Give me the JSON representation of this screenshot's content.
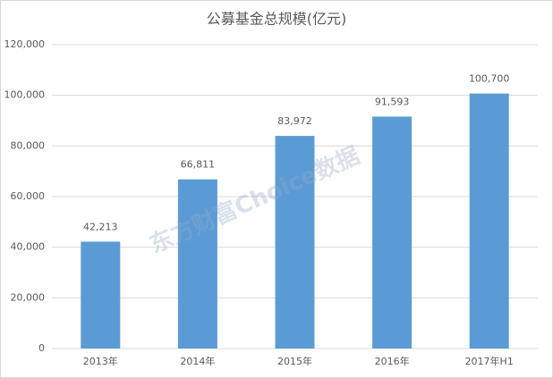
{
  "chart_data": {
    "type": "bar",
    "title": "公募基金总规模(亿元)",
    "categories": [
      "2013年",
      "2014年",
      "2015年",
      "2016年",
      "2017年H1"
    ],
    "values": [
      42213,
      66811,
      83972,
      91593,
      100700
    ],
    "value_labels": [
      "42,213",
      "66,811",
      "83,972",
      "91,593",
      "100,700"
    ],
    "color": "#5b9bd5",
    "ylim": [
      0,
      120000
    ],
    "yticks": [
      0,
      {
        "value": 20000,
        "label": "20,000"
      },
      {
        "value": 40000,
        "label": "40,000"
      },
      {
        "value": 60000,
        "label": "60,000"
      },
      {
        "value": 80000,
        "label": "80,000"
      },
      {
        "value": 100000,
        "label": "100,000"
      },
      {
        "value": 120000,
        "label": "120,000"
      }
    ],
    "grid": true,
    "watermark": "东方财富Choice数据"
  }
}
